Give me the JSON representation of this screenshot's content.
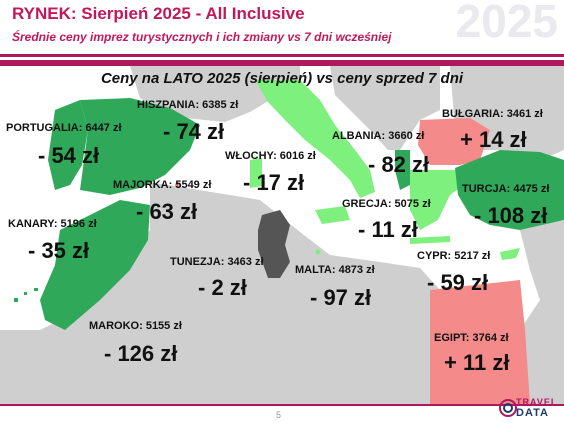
{
  "header": {
    "title": "RYNEK: Sierpień 2025 - All Inclusive",
    "subtitle": "Średnie ceny imprez turystycznych i ich zmiany vs 7 dni wcześniej",
    "year_watermark": "2025"
  },
  "map_title": "Ceny na LATO 2025 (sierpień) vs ceny sprzed 7 dni",
  "colors": {
    "accent": "#b0185e",
    "decrease_big": "#2fa85a",
    "decrease_small": "#7df07d",
    "increase": "#f58a8a",
    "unchanged_dark": "#555555",
    "land": "#cfcfcf"
  },
  "destinations": [
    {
      "id": "portugalia",
      "label": "PORTUGALIA: 6447 zł",
      "change": "- 54 zł"
    },
    {
      "id": "hiszpania",
      "label": "HISZPANIA: 6385 zł",
      "change": "- 74 zł"
    },
    {
      "id": "majorka",
      "label": "MAJORKA: 5549 zł",
      "change": "- 63 zł"
    },
    {
      "id": "kanary",
      "label": "KANARY: 5196 zł",
      "change": "- 35 zł"
    },
    {
      "id": "maroko",
      "label": "MAROKO: 5155 zł",
      "change": "- 126 zł"
    },
    {
      "id": "wlochy",
      "label": "WŁOCHY: 6016 zł",
      "change": "- 17 zł"
    },
    {
      "id": "tunezja",
      "label": "TUNEZJA: 3463 zł",
      "change": "- 2 zł"
    },
    {
      "id": "malta",
      "label": "MALTA: 4873 zł",
      "change": "- 97 zł"
    },
    {
      "id": "albania",
      "label": "ALBANIA: 3660 zł",
      "change": "- 82 zł"
    },
    {
      "id": "grecja",
      "label": "GRECJA: 5075 zł",
      "change": "- 11 zł"
    },
    {
      "id": "bulgaria",
      "label": "BUŁGARIA: 3461 zł",
      "change": "+ 14 zł"
    },
    {
      "id": "turcja",
      "label": "TURCJA: 4475 zł",
      "change": "- 108 zł"
    },
    {
      "id": "cypr",
      "label": "CYPR: 5217 zł",
      "change": "- 59 zł"
    },
    {
      "id": "egipt",
      "label": "EGIPT: 3764 zł",
      "change": "+ 11 zł"
    }
  ],
  "page_number": "5",
  "logo": {
    "line1": "TRAVEL",
    "line2": "DATA"
  }
}
